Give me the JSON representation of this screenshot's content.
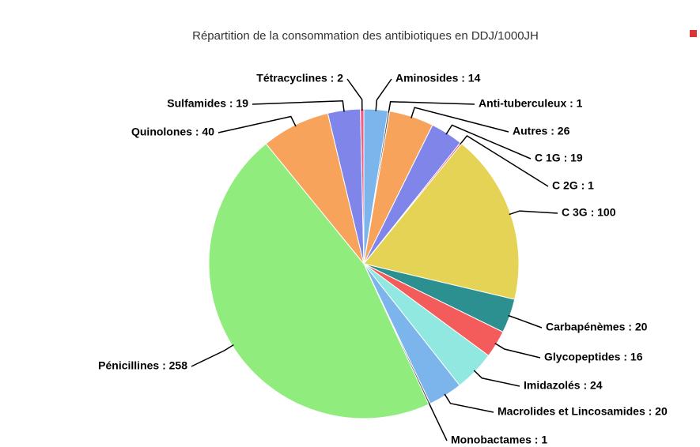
{
  "chart_data": {
    "type": "pie",
    "title": "Répartition de la consommation des antibiotiques en DDJ/1000JH",
    "values": [
      14,
      1,
      26,
      19,
      1,
      100,
      20,
      16,
      24,
      20,
      1,
      258,
      40,
      19,
      2
    ],
    "value_labels": [
      "Aminosides : 14",
      "Anti-tuberculeux : 1",
      "Autres : 26",
      "C 1G : 19",
      "C 2G : 1",
      "C 3G : 100",
      "Carbapénèmes : 20",
      "Glycopeptides : 16",
      "Imidazolés : 24",
      "Macrolides et Lincosamides : 20",
      "Monobactames : 1",
      "Pénicillines : 258",
      "Quinolones : 40",
      "Sulfamides : 19",
      "Tétracyclines : 2"
    ],
    "colors": [
      "#7cb5ec",
      "#434348",
      "#f7a35c",
      "#8085e9",
      "#f15c80",
      "#e4d354",
      "#2b908f",
      "#f45b5b",
      "#91e8e1",
      "#7cb5ec",
      "#434348",
      "#90ed7d",
      "#f7a35c",
      "#8085e9",
      "#f15c80"
    ]
  }
}
